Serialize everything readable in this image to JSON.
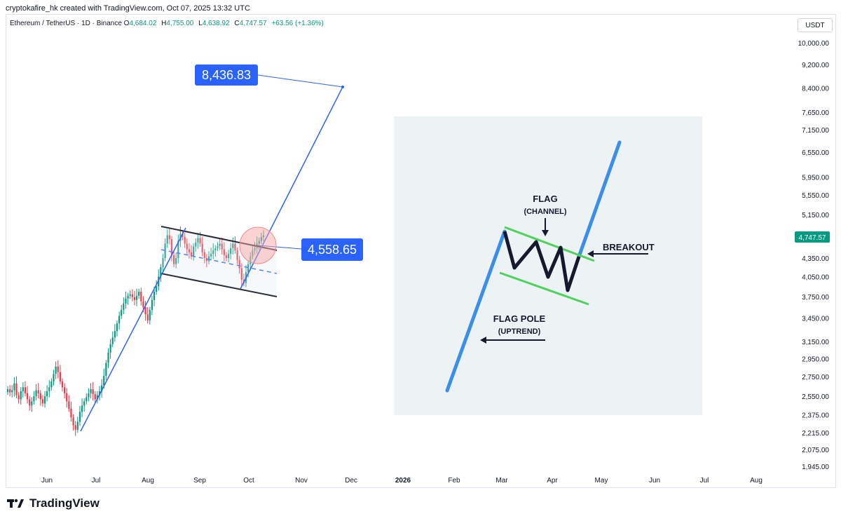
{
  "header": {
    "created_text": "cryptokafire_hk created with TradingView.com, Oct 07, 2025 13:32 UTC"
  },
  "legend": {
    "symbol": "Ethereum / TetherUS · 1D · Binance",
    "o_label": "O",
    "o_value": "4,684.02",
    "h_label": "H",
    "h_value": "4,755.00",
    "l_label": "L",
    "l_value": "4,638.92",
    "c_label": "C",
    "c_value": "4,747.57",
    "change": "+63.56 (+1.36%)"
  },
  "currency": "USDT",
  "footer": {
    "brand": "TradingView"
  },
  "colors": {
    "up": "#089981",
    "down": "#f23645",
    "accent": "#2962ff",
    "label_bg": "#2962ff",
    "price_tag": "#089981"
  },
  "chart_data": {
    "type": "candlestick",
    "y_scale": "log",
    "y_ticks": [
      "10,000.00",
      "9,200.00",
      "8,400.00",
      "7,650.00",
      "7,150.00",
      "6,550.00",
      "5,950.00",
      "5,550.00",
      "5,150.00",
      "4,350.00",
      "4,050.00",
      "3,750.00",
      "3,450.00",
      "3,150.00",
      "2,950.00",
      "2,750.00",
      "2,550.00",
      "2,375.00",
      "2,215.00",
      "2,075.00",
      "1,945.00"
    ],
    "x_ticks": [
      "Jun",
      "Jul",
      "Aug",
      "Sep",
      "Oct",
      "Nov",
      "Dec",
      "2026",
      "Feb",
      "Mar",
      "Apr",
      "May",
      "Jun",
      "Jul",
      "Aug"
    ],
    "last_price": "4,747.57",
    "target_label": "8,436.83",
    "breakout_label": "4,558.65",
    "series_close": [
      2620,
      2590,
      2610,
      2680,
      2560,
      2520,
      2600,
      2640,
      2580,
      2520,
      2460,
      2500,
      2550,
      2610,
      2580,
      2520,
      2480,
      2550,
      2600,
      2640,
      2700,
      2780,
      2860,
      2800,
      2700,
      2640,
      2580,
      2500,
      2430,
      2350,
      2280,
      2240,
      2310,
      2400,
      2460,
      2500,
      2540,
      2580,
      2620,
      2570,
      2520,
      2560,
      2600,
      2660,
      2760,
      2900,
      3020,
      3120,
      3200,
      3280,
      3380,
      3480,
      3560,
      3650,
      3720,
      3760,
      3780,
      3740,
      3700,
      3760,
      3820,
      3680,
      3600,
      3500,
      3420,
      3560,
      3700,
      3820,
      3900,
      4050,
      4200,
      4350,
      4600,
      4750,
      4680,
      4400,
      4250,
      4350,
      4650,
      4780,
      4720,
      4600,
      4500,
      4450,
      4380,
      4550,
      4620,
      4700,
      4600,
      4450,
      4350,
      4300,
      4380,
      4420,
      4480,
      4520,
      4560,
      4600,
      4500,
      4400,
      4350,
      4420,
      4520,
      4600,
      4480,
      4320,
      4180,
      4000,
      3950,
      4120,
      4250,
      4380,
      4480,
      4520,
      4600,
      4650,
      4720,
      4748
    ]
  },
  "illustration": {
    "flag_title": "FLAG",
    "flag_sub": "(CHANNEL)",
    "breakout": "BREAKOUT",
    "pole_title": "FLAG POLE",
    "pole_sub": "(UPTREND)"
  }
}
